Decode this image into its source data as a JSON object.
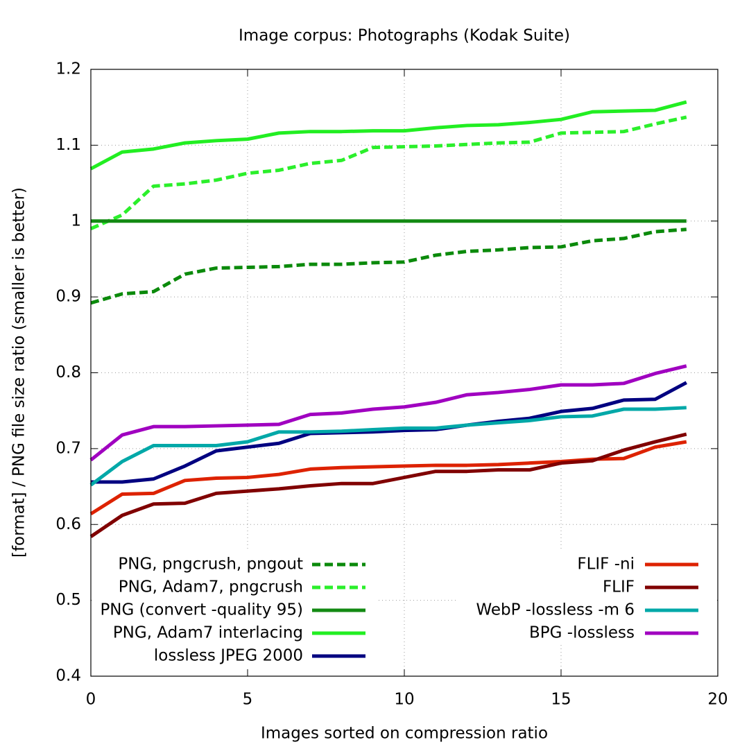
{
  "chart_data": {
    "type": "line",
    "title": "Image corpus: Photographs (Kodak Suite)",
    "x_label": "Images sorted on compression ratio",
    "y_label": "[format] / PNG file size ratio (smaller is better)",
    "x": [
      0,
      1,
      2,
      3,
      4,
      5,
      6,
      7,
      8,
      9,
      10,
      11,
      12,
      13,
      14,
      15,
      16,
      17,
      18,
      19
    ],
    "xlim": [
      0,
      20
    ],
    "xticks": [
      0,
      5,
      10,
      15,
      20
    ],
    "ylim": [
      0.4,
      1.2
    ],
    "yticks": [
      0.4,
      0.5,
      0.6,
      0.7,
      0.8,
      0.9,
      1,
      1.1,
      1.2
    ],
    "grid": true,
    "series": [
      {
        "name": "PNG, pngcrush, pngout",
        "color": "#0b8a0b",
        "dashed": true,
        "values": [
          0.892,
          0.904,
          0.907,
          0.93,
          0.938,
          0.939,
          0.94,
          0.943,
          0.943,
          0.945,
          0.946,
          0.955,
          0.96,
          0.962,
          0.965,
          0.966,
          0.974,
          0.977,
          0.986,
          0.989
        ]
      },
      {
        "name": "PNG, Adam7, pngcrush",
        "color": "#2bef2b",
        "dashed": true,
        "values": [
          0.99,
          1.008,
          1.046,
          1.049,
          1.054,
          1.063,
          1.067,
          1.076,
          1.08,
          1.097,
          1.098,
          1.099,
          1.101,
          1.103,
          1.104,
          1.116,
          1.117,
          1.118,
          1.128,
          1.137
        ]
      },
      {
        "name": "PNG (convert -quality 95)",
        "color": "#138a13",
        "dashed": false,
        "values": [
          1,
          1,
          1,
          1,
          1,
          1,
          1,
          1,
          1,
          1,
          1,
          1,
          1,
          1,
          1,
          1,
          1,
          1,
          1,
          1
        ]
      },
      {
        "name": "PNG, Adam7 interlacing",
        "color": "#22ee22",
        "dashed": false,
        "values": [
          1.069,
          1.091,
          1.095,
          1.103,
          1.106,
          1.108,
          1.116,
          1.118,
          1.118,
          1.119,
          1.119,
          1.123,
          1.126,
          1.127,
          1.13,
          1.134,
          1.144,
          1.145,
          1.146,
          1.157
        ]
      },
      {
        "name": "lossless JPEG 2000",
        "color": "#000080",
        "dashed": false,
        "values": [
          0.656,
          0.656,
          0.66,
          0.677,
          0.697,
          0.702,
          0.707,
          0.72,
          0.721,
          0.722,
          0.724,
          0.725,
          0.731,
          0.736,
          0.74,
          0.749,
          0.753,
          0.764,
          0.765,
          0.787
        ]
      },
      {
        "name": "FLIF -ni",
        "color": "#dd2200",
        "dashed": false,
        "values": [
          0.614,
          0.64,
          0.641,
          0.658,
          0.661,
          0.662,
          0.666,
          0.673,
          0.675,
          0.676,
          0.677,
          0.678,
          0.678,
          0.679,
          0.681,
          0.683,
          0.686,
          0.687,
          0.702,
          0.709
        ]
      },
      {
        "name": "FLIF",
        "color": "#800000",
        "dashed": false,
        "values": [
          0.584,
          0.612,
          0.627,
          0.628,
          0.641,
          0.644,
          0.647,
          0.651,
          0.654,
          0.654,
          0.662,
          0.67,
          0.67,
          0.672,
          0.672,
          0.681,
          0.684,
          0.698,
          0.709,
          0.719
        ]
      },
      {
        "name": "WebP -lossless -m 6",
        "color": "#00a8a8",
        "dashed": false,
        "values": [
          0.652,
          0.683,
          0.704,
          0.704,
          0.704,
          0.709,
          0.722,
          0.722,
          0.723,
          0.725,
          0.727,
          0.727,
          0.731,
          0.734,
          0.737,
          0.742,
          0.743,
          0.752,
          0.752,
          0.754
        ]
      },
      {
        "name": "BPG -lossless",
        "color": "#a000c0",
        "dashed": false,
        "values": [
          0.685,
          0.718,
          0.729,
          0.729,
          0.73,
          0.731,
          0.732,
          0.745,
          0.747,
          0.752,
          0.755,
          0.761,
          0.771,
          0.774,
          0.778,
          0.784,
          0.784,
          0.786,
          0.799,
          0.809
        ]
      }
    ]
  }
}
